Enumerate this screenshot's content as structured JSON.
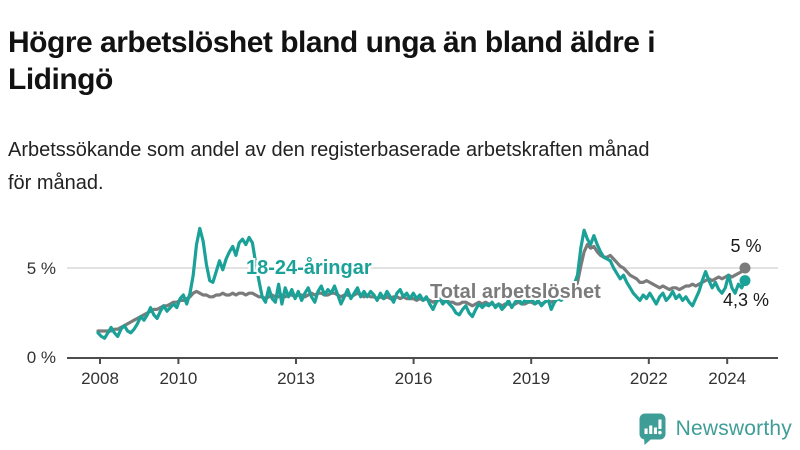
{
  "header": {
    "title_line1": "Högre arbetslöshet bland unga än bland äldre i",
    "title_line2": "Lidingö",
    "subtitle_line1": "Arbetssökande som andel av den registerbaserade arbetskraften månad",
    "subtitle_line2": "för månad."
  },
  "chart_data": {
    "type": "line",
    "unit": "percent of registered workforce",
    "frequency": "monthly",
    "x_range": [
      "2008-01",
      "2024-06"
    ],
    "ylim": [
      0,
      8
    ],
    "grid": "single horizontal gridline at 5 %",
    "gridline_color": "#d9d9d9",
    "axis_color": "#4d4d4d",
    "x_tick_years": [
      2008,
      2010,
      2013,
      2016,
      2019,
      2022,
      2024
    ],
    "x_tick_labels": [
      "2008",
      "2010",
      "2013",
      "2016",
      "2019",
      "2022",
      "2024"
    ],
    "y_tick_labels": [
      "0 %",
      "5 %"
    ],
    "series": [
      {
        "name": "18-24-åringar",
        "color": "#1BA298",
        "end_label": "4,3 %",
        "values": [
          1.4,
          1.2,
          1.1,
          1.4,
          1.7,
          1.4,
          1.2,
          1.6,
          1.8,
          1.5,
          1.4,
          1.6,
          1.9,
          2.3,
          2.1,
          2.4,
          2.8,
          2.4,
          2.2,
          2.6,
          2.9,
          2.6,
          2.8,
          3.0,
          2.8,
          3.3,
          3.5,
          3.0,
          3.6,
          4.6,
          6.3,
          7.2,
          6.5,
          5.2,
          4.3,
          4.2,
          4.8,
          5.4,
          4.9,
          5.5,
          5.9,
          6.2,
          5.7,
          6.4,
          6.6,
          6.3,
          6.7,
          6.4,
          5.3,
          4.3,
          3.4,
          3.1,
          3.9,
          3.3,
          3.1,
          4.1,
          3.0,
          3.9,
          3.4,
          3.8,
          3.3,
          3.7,
          3.2,
          3.6,
          3.9,
          3.4,
          3.1,
          3.7,
          4.0,
          3.5,
          3.8,
          3.6,
          4.0,
          3.5,
          3.0,
          3.4,
          3.8,
          3.3,
          3.6,
          3.9,
          3.4,
          3.7,
          3.4,
          3.7,
          3.5,
          3.2,
          3.6,
          3.3,
          3.7,
          3.4,
          3.1,
          3.6,
          3.8,
          3.4,
          3.6,
          3.3,
          3.6,
          3.3,
          3.5,
          3.2,
          3.4,
          3.0,
          2.7,
          3.1,
          3.3,
          3.0,
          3.2,
          3.0,
          2.8,
          2.5,
          2.4,
          2.7,
          2.9,
          2.5,
          2.3,
          2.7,
          3.0,
          2.8,
          3.0,
          2.9,
          3.1,
          2.8,
          3.0,
          2.7,
          2.9,
          3.2,
          2.8,
          3.1,
          3.3,
          3.0,
          3.2,
          3.1,
          3.3,
          3.0,
          3.2,
          2.9,
          3.1,
          3.3,
          2.7,
          3.1,
          3.3,
          3.2,
          3.4,
          3.6,
          3.8,
          4.1,
          4.6,
          6.1,
          7.1,
          6.6,
          6.3,
          6.8,
          6.3,
          5.9,
          5.6,
          5.5,
          5.4,
          5.0,
          4.7,
          4.4,
          4.6,
          4.2,
          3.9,
          3.6,
          3.4,
          3.2,
          3.5,
          3.3,
          3.6,
          3.3,
          3.0,
          3.4,
          3.6,
          3.2,
          3.4,
          3.7,
          3.3,
          3.5,
          3.2,
          3.4,
          3.1,
          2.9,
          3.3,
          3.7,
          4.3,
          4.8,
          4.3,
          3.9,
          4.2,
          3.8,
          3.6,
          3.9,
          4.6,
          3.9,
          3.6,
          4.1,
          3.9,
          4.3
        ]
      },
      {
        "name": "Total arbetslöshet",
        "color": "#7B7B7B",
        "end_label": "5 %",
        "values": [
          1.5,
          1.5,
          1.5,
          1.5,
          1.5,
          1.6,
          1.6,
          1.7,
          1.8,
          1.9,
          2.0,
          2.1,
          2.2,
          2.3,
          2.4,
          2.5,
          2.6,
          2.7,
          2.7,
          2.8,
          2.9,
          2.9,
          3.0,
          3.1,
          3.1,
          3.2,
          3.2,
          3.3,
          3.4,
          3.6,
          3.7,
          3.6,
          3.5,
          3.5,
          3.4,
          3.4,
          3.5,
          3.5,
          3.6,
          3.5,
          3.5,
          3.6,
          3.5,
          3.6,
          3.6,
          3.5,
          3.6,
          3.6,
          3.5,
          3.4,
          3.4,
          3.3,
          3.4,
          3.5,
          3.4,
          3.4,
          3.5,
          3.4,
          3.5,
          3.5,
          3.4,
          3.5,
          3.5,
          3.4,
          3.5,
          3.6,
          3.5,
          3.6,
          3.6,
          3.5,
          3.5,
          3.6,
          3.6,
          3.5,
          3.4,
          3.5,
          3.5,
          3.4,
          3.5,
          3.6,
          3.5,
          3.4,
          3.5,
          3.4,
          3.4,
          3.3,
          3.4,
          3.3,
          3.4,
          3.3,
          3.4,
          3.4,
          3.3,
          3.4,
          3.3,
          3.3,
          3.3,
          3.2,
          3.3,
          3.2,
          3.3,
          3.2,
          3.1,
          3.2,
          3.3,
          3.2,
          3.2,
          3.1,
          3.1,
          3.0,
          3.0,
          3.1,
          3.1,
          3.0,
          2.9,
          3.0,
          3.1,
          3.0,
          3.1,
          3.0,
          3.0,
          2.9,
          3.0,
          2.9,
          3.0,
          3.0,
          2.9,
          3.0,
          3.1,
          3.0,
          3.0,
          3.1,
          3.1,
          3.0,
          3.1,
          3.0,
          3.1,
          3.2,
          3.1,
          3.2,
          3.3,
          3.3,
          3.4,
          3.5,
          3.6,
          3.8,
          4.2,
          5.1,
          5.9,
          6.3,
          6.1,
          6.2,
          5.9,
          5.7,
          5.6,
          5.6,
          5.7,
          5.5,
          5.3,
          5.1,
          5.0,
          4.8,
          4.6,
          4.5,
          4.4,
          4.2,
          4.2,
          4.3,
          4.2,
          4.1,
          4.0,
          3.9,
          4.0,
          3.9,
          3.8,
          3.9,
          3.9,
          3.8,
          3.9,
          4.0,
          4.0,
          4.1,
          4.0,
          4.1,
          4.2,
          4.3,
          4.4,
          4.3,
          4.4,
          4.5,
          4.4,
          4.5,
          4.6,
          4.5,
          4.6,
          4.7,
          4.8,
          5.0
        ]
      }
    ]
  },
  "branding": {
    "logo_text": "Newsworthy",
    "logo_color": "#3F9D97",
    "logo_icon": "bar-chart-speech-bubble"
  }
}
